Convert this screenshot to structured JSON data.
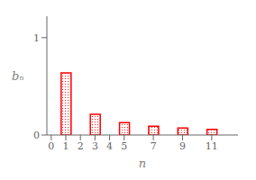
{
  "chart_data": {
    "type": "bar",
    "x": [
      1,
      3,
      5,
      7,
      9,
      11
    ],
    "values": [
      0.6366,
      0.2122,
      0.1273,
      0.0909,
      0.0707,
      0.0579
    ],
    "color": "#ff0000",
    "xlim": [
      -0.3,
      12.8
    ],
    "xticks": [
      0,
      1,
      2,
      3,
      4,
      5,
      7,
      9,
      11
    ],
    "ylim": [
      0,
      1.22
    ],
    "yticks": [
      0,
      1
    ],
    "xlabel": "n",
    "ylabel": "bₙ"
  }
}
